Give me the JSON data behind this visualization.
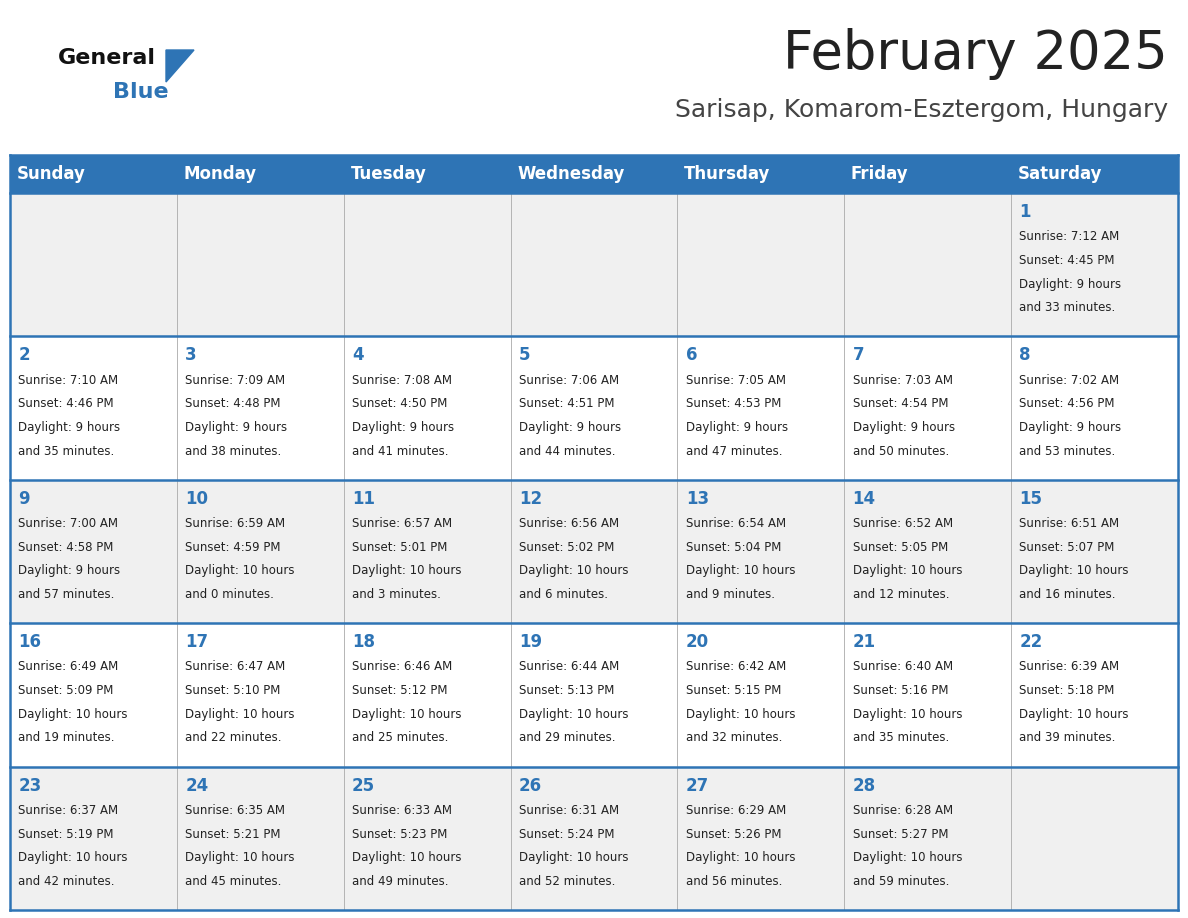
{
  "title": "February 2025",
  "subtitle": "Sarisap, Komarom-Esztergom, Hungary",
  "days_of_week": [
    "Sunday",
    "Monday",
    "Tuesday",
    "Wednesday",
    "Thursday",
    "Friday",
    "Saturday"
  ],
  "header_bg": "#2E74B5",
  "header_text": "#FFFFFF",
  "row_bg_white": "#FFFFFF",
  "row_bg_grey": "#F0F0F0",
  "day_num_color": "#2E74B5",
  "cell_text_color": "#222222",
  "title_color": "#222222",
  "subtitle_color": "#444444",
  "logo_general_color": "#111111",
  "logo_blue_color": "#2E74B5",
  "border_color": "#2E74B5",
  "separator_color": "#AAAAAA",
  "calendar": [
    [
      null,
      null,
      null,
      null,
      null,
      null,
      {
        "day": 1,
        "sunrise": "7:12 AM",
        "sunset": "4:45 PM",
        "daylight": "9 hours and 33 minutes."
      }
    ],
    [
      {
        "day": 2,
        "sunrise": "7:10 AM",
        "sunset": "4:46 PM",
        "daylight": "9 hours and 35 minutes."
      },
      {
        "day": 3,
        "sunrise": "7:09 AM",
        "sunset": "4:48 PM",
        "daylight": "9 hours and 38 minutes."
      },
      {
        "day": 4,
        "sunrise": "7:08 AM",
        "sunset": "4:50 PM",
        "daylight": "9 hours and 41 minutes."
      },
      {
        "day": 5,
        "sunrise": "7:06 AM",
        "sunset": "4:51 PM",
        "daylight": "9 hours and 44 minutes."
      },
      {
        "day": 6,
        "sunrise": "7:05 AM",
        "sunset": "4:53 PM",
        "daylight": "9 hours and 47 minutes."
      },
      {
        "day": 7,
        "sunrise": "7:03 AM",
        "sunset": "4:54 PM",
        "daylight": "9 hours and 50 minutes."
      },
      {
        "day": 8,
        "sunrise": "7:02 AM",
        "sunset": "4:56 PM",
        "daylight": "9 hours and 53 minutes."
      }
    ],
    [
      {
        "day": 9,
        "sunrise": "7:00 AM",
        "sunset": "4:58 PM",
        "daylight": "9 hours and 57 minutes."
      },
      {
        "day": 10,
        "sunrise": "6:59 AM",
        "sunset": "4:59 PM",
        "daylight": "10 hours and 0 minutes."
      },
      {
        "day": 11,
        "sunrise": "6:57 AM",
        "sunset": "5:01 PM",
        "daylight": "10 hours and 3 minutes."
      },
      {
        "day": 12,
        "sunrise": "6:56 AM",
        "sunset": "5:02 PM",
        "daylight": "10 hours and 6 minutes."
      },
      {
        "day": 13,
        "sunrise": "6:54 AM",
        "sunset": "5:04 PM",
        "daylight": "10 hours and 9 minutes."
      },
      {
        "day": 14,
        "sunrise": "6:52 AM",
        "sunset": "5:05 PM",
        "daylight": "10 hours and 12 minutes."
      },
      {
        "day": 15,
        "sunrise": "6:51 AM",
        "sunset": "5:07 PM",
        "daylight": "10 hours and 16 minutes."
      }
    ],
    [
      {
        "day": 16,
        "sunrise": "6:49 AM",
        "sunset": "5:09 PM",
        "daylight": "10 hours and 19 minutes."
      },
      {
        "day": 17,
        "sunrise": "6:47 AM",
        "sunset": "5:10 PM",
        "daylight": "10 hours and 22 minutes."
      },
      {
        "day": 18,
        "sunrise": "6:46 AM",
        "sunset": "5:12 PM",
        "daylight": "10 hours and 25 minutes."
      },
      {
        "day": 19,
        "sunrise": "6:44 AM",
        "sunset": "5:13 PM",
        "daylight": "10 hours and 29 minutes."
      },
      {
        "day": 20,
        "sunrise": "6:42 AM",
        "sunset": "5:15 PM",
        "daylight": "10 hours and 32 minutes."
      },
      {
        "day": 21,
        "sunrise": "6:40 AM",
        "sunset": "5:16 PM",
        "daylight": "10 hours and 35 minutes."
      },
      {
        "day": 22,
        "sunrise": "6:39 AM",
        "sunset": "5:18 PM",
        "daylight": "10 hours and 39 minutes."
      }
    ],
    [
      {
        "day": 23,
        "sunrise": "6:37 AM",
        "sunset": "5:19 PM",
        "daylight": "10 hours and 42 minutes."
      },
      {
        "day": 24,
        "sunrise": "6:35 AM",
        "sunset": "5:21 PM",
        "daylight": "10 hours and 45 minutes."
      },
      {
        "day": 25,
        "sunrise": "6:33 AM",
        "sunset": "5:23 PM",
        "daylight": "10 hours and 49 minutes."
      },
      {
        "day": 26,
        "sunrise": "6:31 AM",
        "sunset": "5:24 PM",
        "daylight": "10 hours and 52 minutes."
      },
      {
        "day": 27,
        "sunrise": "6:29 AM",
        "sunset": "5:26 PM",
        "daylight": "10 hours and 56 minutes."
      },
      {
        "day": 28,
        "sunrise": "6:28 AM",
        "sunset": "5:27 PM",
        "daylight": "10 hours and 59 minutes."
      },
      null
    ]
  ],
  "row_bg_colors": [
    "#F0F0F0",
    "#FFFFFF",
    "#F0F0F0",
    "#FFFFFF",
    "#F0F0F0"
  ]
}
